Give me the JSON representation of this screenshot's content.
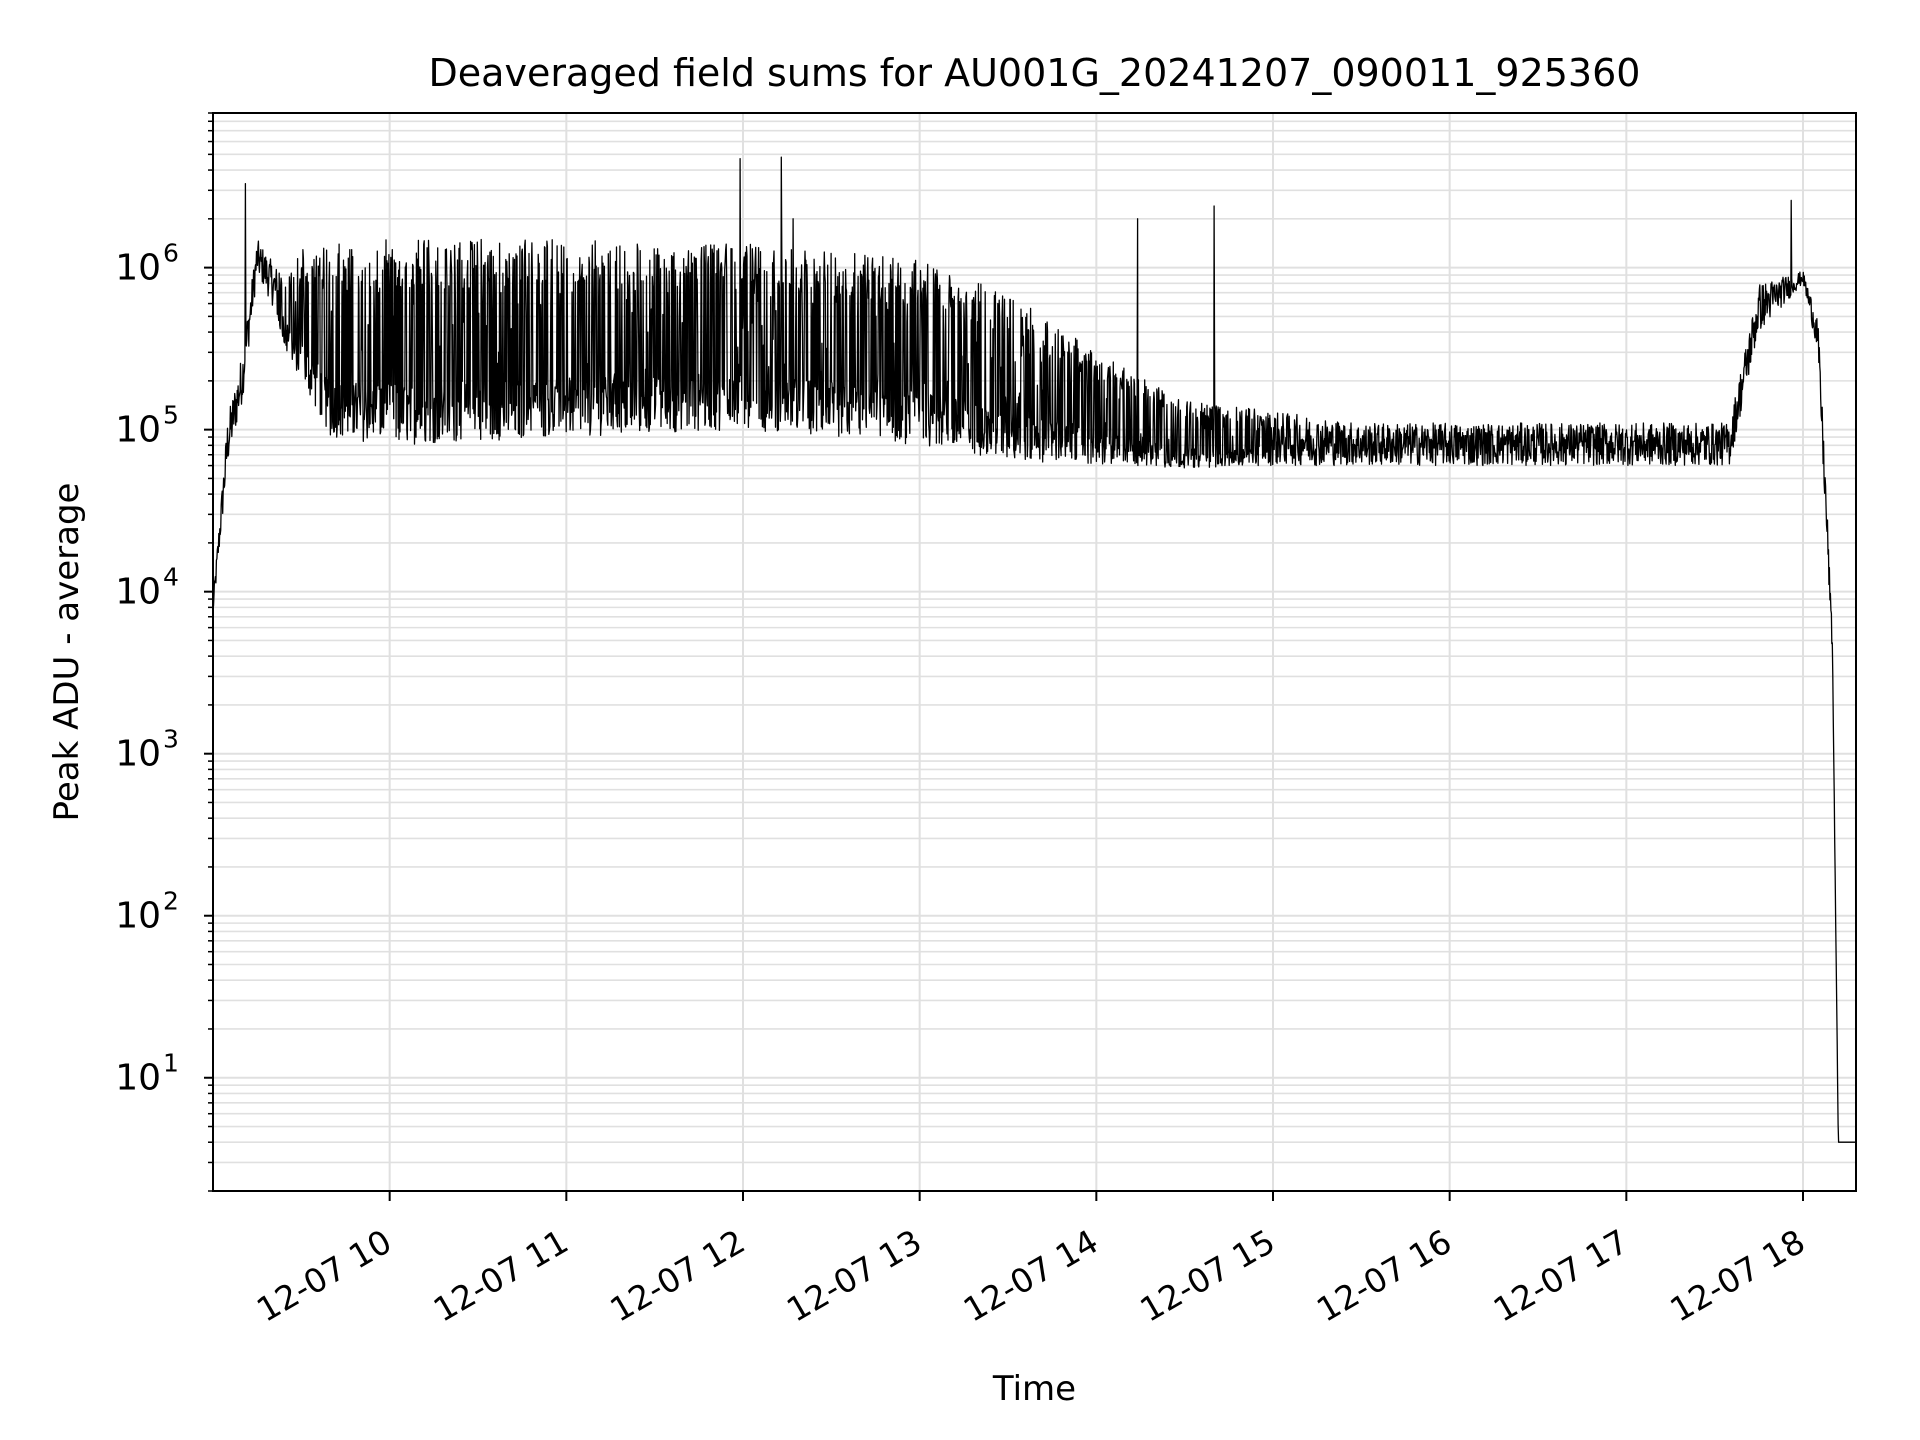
{
  "chart_data": {
    "type": "line",
    "title": "Deaveraged field sums for AU001G_20241207_090011_925360",
    "xlabel": "Time",
    "ylabel": "Peak ADU - average",
    "yscale": "log",
    "ylim": [
      2,
      9000000
    ],
    "xlim": [
      "2024-12-07 09:00",
      "2024-12-07 18:18"
    ],
    "grid": true,
    "line_color": "#000000",
    "grid_color": "#e0e0e0",
    "x_ticks": [
      {
        "t": "2024-12-07 10:00",
        "label": "12-07 10"
      },
      {
        "t": "2024-12-07 11:00",
        "label": "12-07 11"
      },
      {
        "t": "2024-12-07 12:00",
        "label": "12-07 12"
      },
      {
        "t": "2024-12-07 13:00",
        "label": "12-07 13"
      },
      {
        "t": "2024-12-07 14:00",
        "label": "12-07 14"
      },
      {
        "t": "2024-12-07 15:00",
        "label": "12-07 15"
      },
      {
        "t": "2024-12-07 16:00",
        "label": "12-07 16"
      },
      {
        "t": "2024-12-07 17:00",
        "label": "12-07 17"
      },
      {
        "t": "2024-12-07 18:00",
        "label": "12-07 18"
      }
    ],
    "y_ticks": [
      {
        "value": 10,
        "base": "10",
        "exp": "1"
      },
      {
        "value": 100,
        "base": "10",
        "exp": "2"
      },
      {
        "value": 1000,
        "base": "10",
        "exp": "3"
      },
      {
        "value": 10000,
        "base": "10",
        "exp": "4"
      },
      {
        "value": 100000,
        "base": "10",
        "exp": "5"
      },
      {
        "value": 1000000,
        "base": "10",
        "exp": "6"
      }
    ],
    "series": [
      {
        "x_start": "2024-12-07 09:00",
        "x_end": "2024-12-07 18:18",
        "envelope": [
          {
            "t": "2024-12-07 09:00",
            "low": 7000,
            "high": 9000
          },
          {
            "t": "2024-12-07 09:05",
            "low": 60000,
            "high": 120000
          },
          {
            "t": "2024-12-07 09:10",
            "low": 150000,
            "high": 300000
          },
          {
            "t": "2024-12-07 09:15",
            "low": 900000,
            "high": 1500000
          },
          {
            "t": "2024-12-07 09:20",
            "low": 600000,
            "high": 1100000
          },
          {
            "t": "2024-12-07 09:25",
            "low": 300000,
            "high": 900000
          },
          {
            "t": "2024-12-07 09:30",
            "low": 200000,
            "high": 1300000
          },
          {
            "t": "2024-12-07 09:40",
            "low": 90000,
            "high": 1400000
          },
          {
            "t": "2024-12-07 10:00",
            "low": 80000,
            "high": 1500000
          },
          {
            "t": "2024-12-07 11:00",
            "low": 90000,
            "high": 1500000
          },
          {
            "t": "2024-12-07 12:00",
            "low": 100000,
            "high": 1400000
          },
          {
            "t": "2024-12-07 12:30",
            "low": 90000,
            "high": 1300000
          },
          {
            "t": "2024-12-07 13:00",
            "low": 80000,
            "high": 1100000
          },
          {
            "t": "2024-12-07 13:30",
            "low": 65000,
            "high": 700000
          },
          {
            "t": "2024-12-07 14:00",
            "low": 60000,
            "high": 300000
          },
          {
            "t": "2024-12-07 14:30",
            "low": 58000,
            "high": 150000
          },
          {
            "t": "2024-12-07 15:00",
            "low": 60000,
            "high": 130000
          },
          {
            "t": "2024-12-07 15:30",
            "low": 60000,
            "high": 110000
          },
          {
            "t": "2024-12-07 16:00",
            "low": 60000,
            "high": 110000
          },
          {
            "t": "2024-12-07 17:00",
            "low": 60000,
            "high": 110000
          },
          {
            "t": "2024-12-07 17:35",
            "low": 60000,
            "high": 110000
          },
          {
            "t": "2024-12-07 17:45",
            "low": 400000,
            "high": 800000
          },
          {
            "t": "2024-12-07 18:00",
            "low": 800000,
            "high": 950000
          },
          {
            "t": "2024-12-07 18:05",
            "low": 300000,
            "high": 500000
          },
          {
            "t": "2024-12-07 18:08",
            "low": 20000,
            "high": 40000
          },
          {
            "t": "2024-12-07 18:10",
            "low": 4000,
            "high": 5000
          },
          {
            "t": "2024-12-07 18:12",
            "low": 4,
            "high": 4
          },
          {
            "t": "2024-12-07 18:18",
            "low": 4,
            "high": 4
          }
        ],
        "spikes": [
          {
            "t": "2024-12-07 09:11",
            "value": 3300000
          },
          {
            "t": "2024-12-07 11:59",
            "value": 4700000
          },
          {
            "t": "2024-12-07 12:13",
            "value": 4800000
          },
          {
            "t": "2024-12-07 12:17",
            "value": 2000000
          },
          {
            "t": "2024-12-07 14:40",
            "value": 2400000
          },
          {
            "t": "2024-12-07 14:14",
            "value": 2000000
          },
          {
            "t": "2024-12-07 17:56",
            "value": 2600000
          }
        ]
      }
    ]
  }
}
